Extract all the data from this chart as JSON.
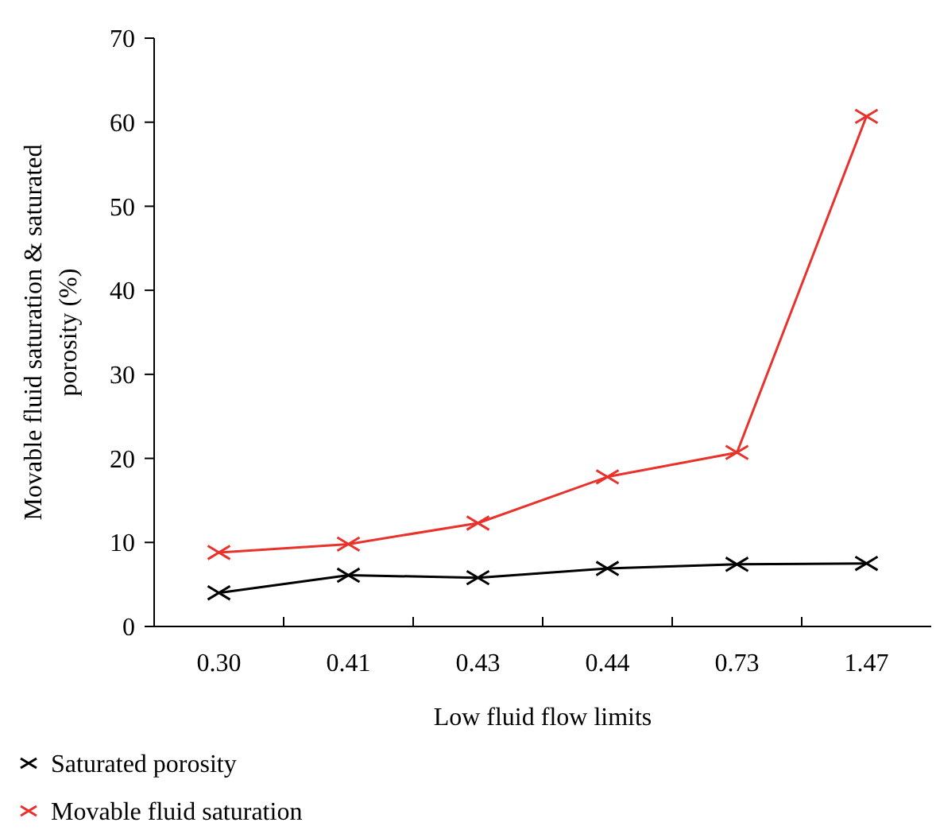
{
  "chart_data": {
    "type": "line",
    "xlabel": "Low fluid flow limits",
    "ylabel": "Movable fluid saturation & saturated porosity (%)",
    "categories": [
      "0.30",
      "0.41",
      "0.43",
      "0.44",
      "0.73",
      "1.47"
    ],
    "ylim": [
      0,
      70
    ],
    "yticks": [
      0,
      10,
      20,
      30,
      40,
      50,
      60,
      70
    ],
    "marker": "cross",
    "legend": "bottom left",
    "grid": false,
    "series": [
      {
        "name": "Saturated porosity",
        "color": "#000000",
        "values": [
          4.0,
          6.1,
          5.8,
          6.9,
          7.4,
          7.5
        ]
      },
      {
        "name": "Movable fluid saturation",
        "color": "#e8322b",
        "values": [
          8.8,
          9.8,
          12.3,
          17.8,
          20.7,
          60.7
        ]
      }
    ]
  }
}
